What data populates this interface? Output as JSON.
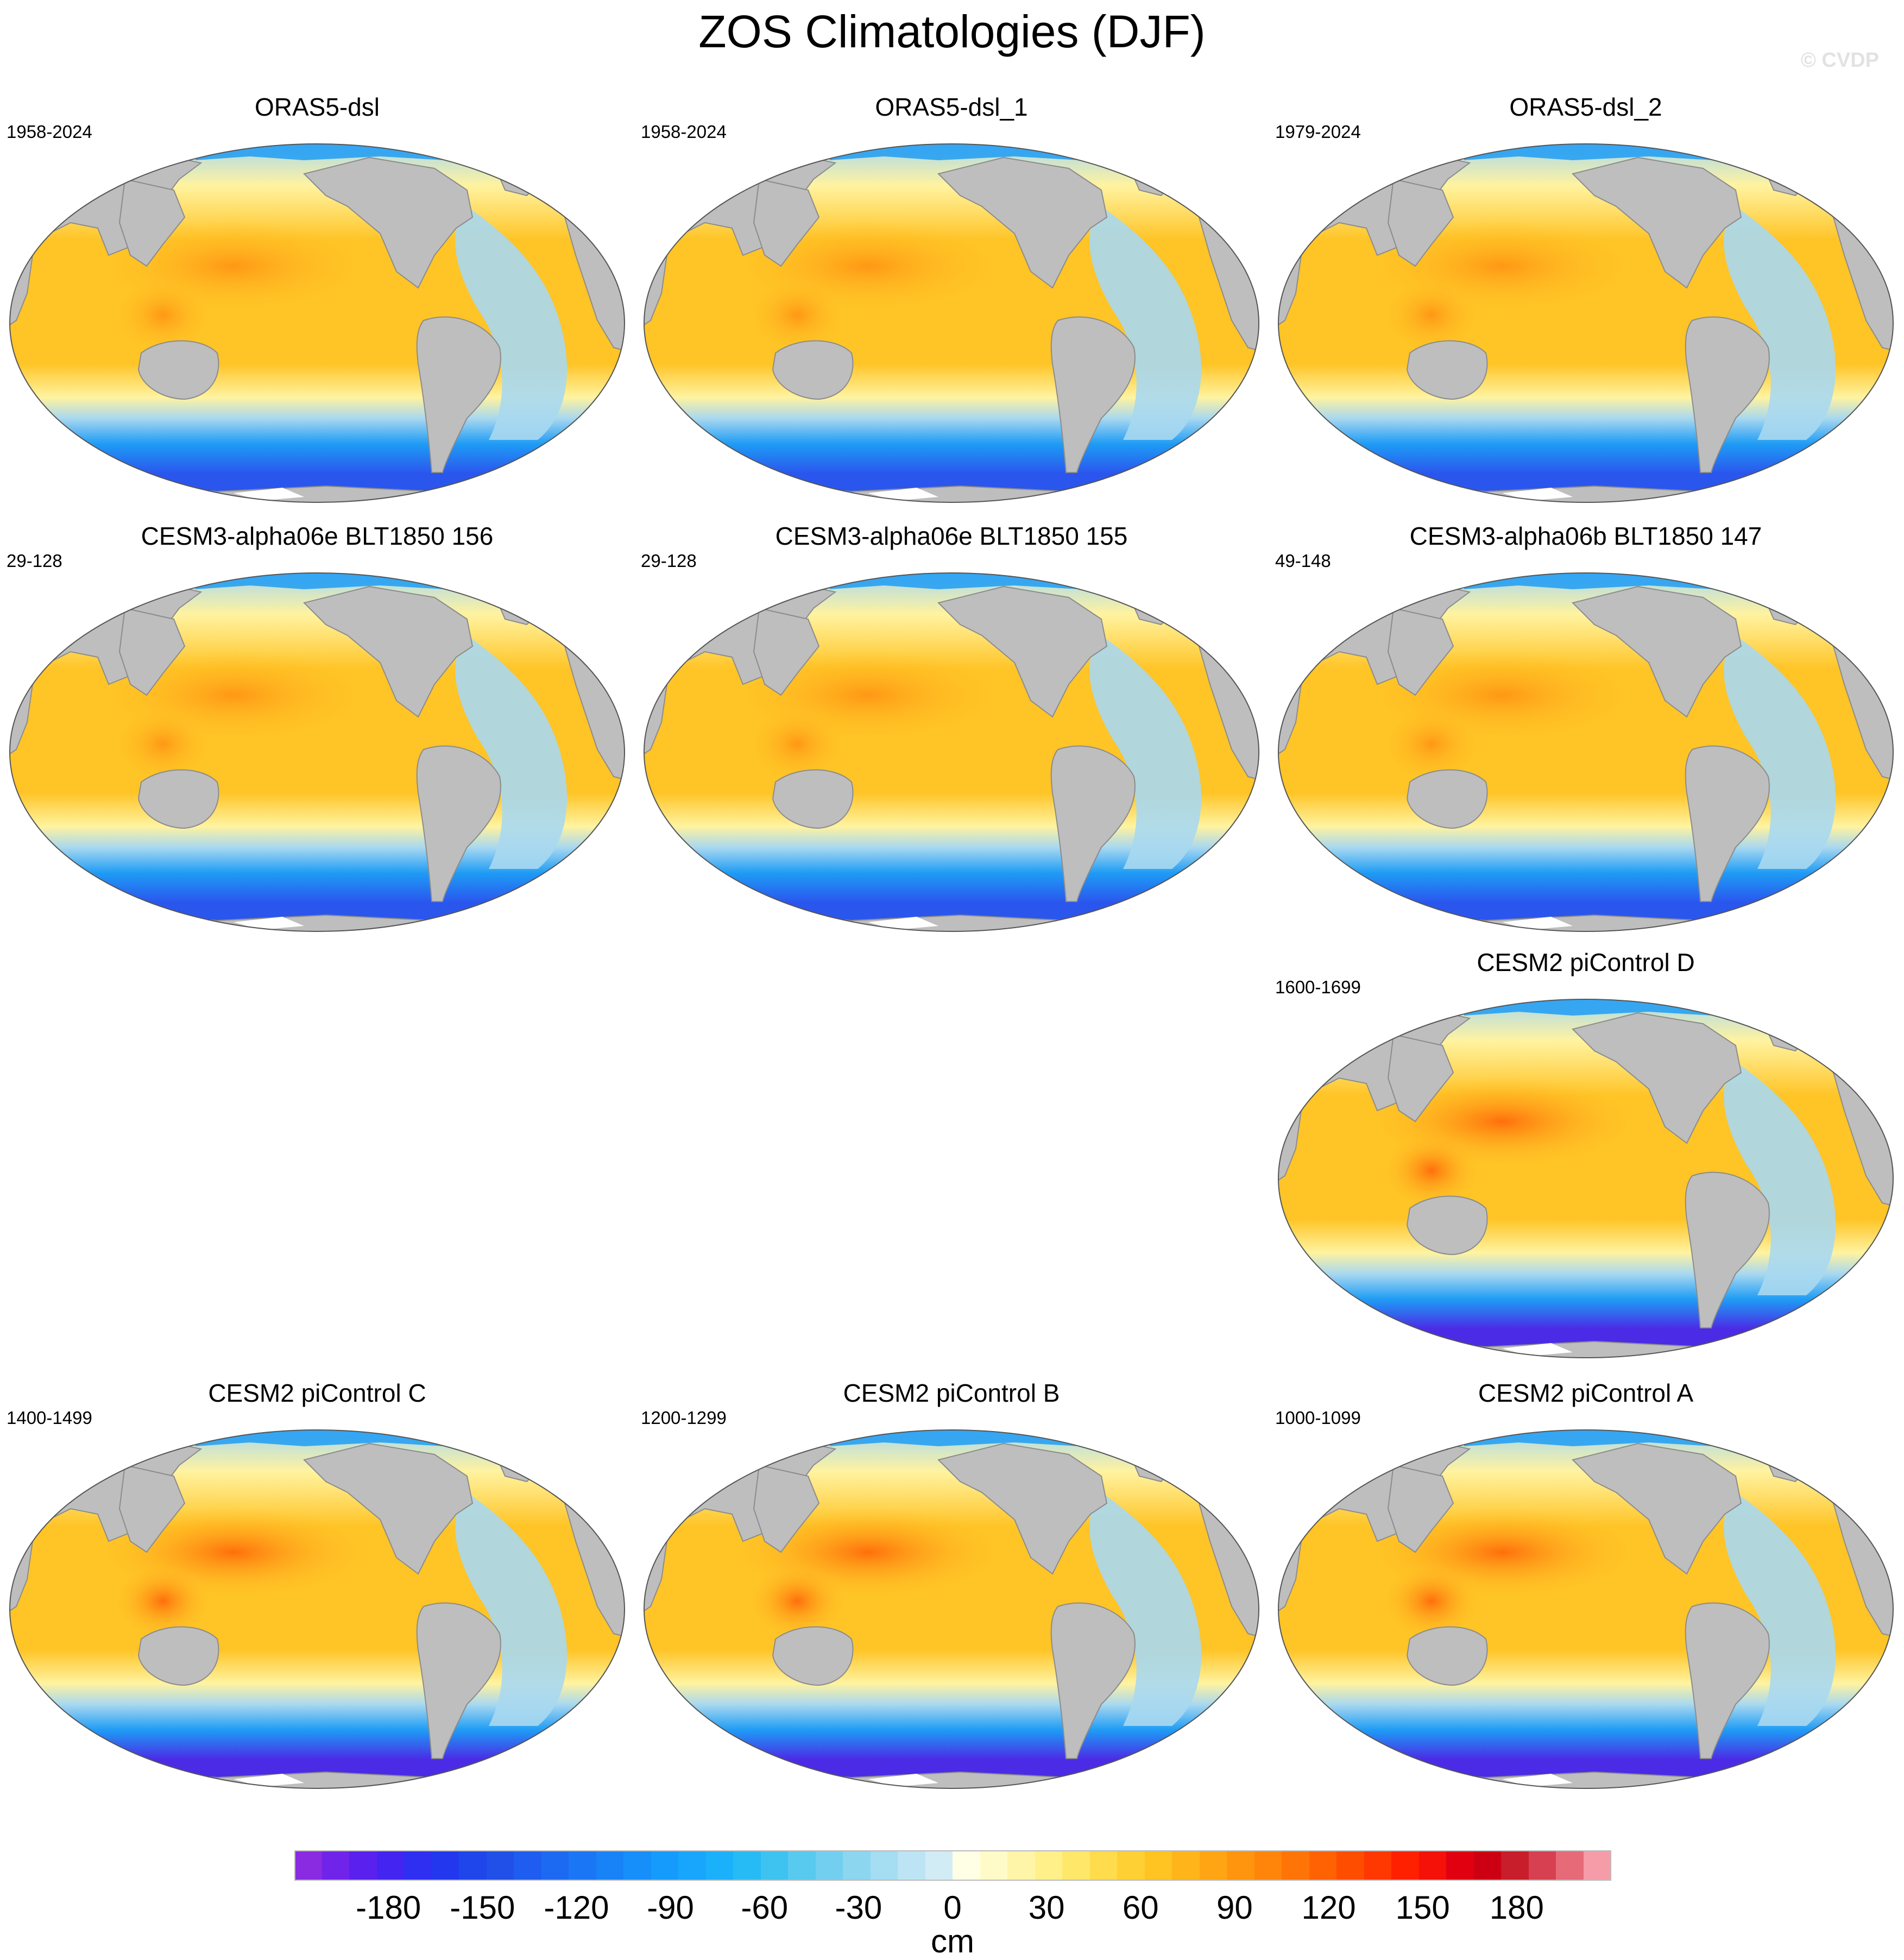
{
  "title": "ZOS Climatologies (DJF)",
  "watermark": "© CVDP",
  "panels": [
    {
      "title": "ORAS5-dsl",
      "period": "1958-2024",
      "row": 0,
      "col": 0,
      "style": "obs"
    },
    {
      "title": "ORAS5-dsl_1",
      "period": "1958-2024",
      "row": 0,
      "col": 1,
      "style": "obs"
    },
    {
      "title": "ORAS5-dsl_2",
      "period": "1979-2024",
      "row": 0,
      "col": 2,
      "style": "obs"
    },
    {
      "title": "CESM3-alpha06e BLT1850 156",
      "period": "29-128",
      "row": 1,
      "col": 0,
      "style": "cesm3"
    },
    {
      "title": "CESM3-alpha06e BLT1850 155",
      "period": "29-128",
      "row": 1,
      "col": 1,
      "style": "cesm3"
    },
    {
      "title": "CESM3-alpha06b BLT1850 147",
      "period": "49-148",
      "row": 1,
      "col": 2,
      "style": "cesm3"
    },
    {
      "title": "CESM2 piControl D",
      "period": "1600-1699",
      "row": 2,
      "col": 2,
      "style": "cesm2"
    },
    {
      "title": "CESM2 piControl C",
      "period": "1400-1499",
      "row": 3,
      "col": 0,
      "style": "cesm2"
    },
    {
      "title": "CESM2 piControl B",
      "period": "1200-1299",
      "row": 3,
      "col": 1,
      "style": "cesm2"
    },
    {
      "title": "CESM2 piControl A",
      "period": "1000-1099",
      "row": 3,
      "col": 2,
      "style": "cesm2"
    }
  ],
  "colorbar": {
    "units": "cm",
    "ticks": [
      "-180",
      "-150",
      "-120",
      "-90",
      "-60",
      "-30",
      "0",
      "30",
      "60",
      "90",
      "120",
      "150",
      "180"
    ],
    "colors": [
      "#8a2be2",
      "#7024ea",
      "#5a20ee",
      "#4424f0",
      "#2f2ff2",
      "#2338ee",
      "#1f46ea",
      "#2050e8",
      "#1f5df0",
      "#1c6af2",
      "#1a76f5",
      "#1882f7",
      "#168ffa",
      "#159bfb",
      "#17a6fb",
      "#1ab1fa",
      "#27bbf5",
      "#3ec3f1",
      "#58c9ef",
      "#72cfef",
      "#8cd6f0",
      "#a5ddf2",
      "#bde4f4",
      "#d2ecf6",
      "#ffffe6",
      "#fffbc8",
      "#fff5a8",
      "#fff08a",
      "#ffe76a",
      "#ffdc4c",
      "#ffd034",
      "#ffc322",
      "#ffb41a",
      "#ffa514",
      "#ff950f",
      "#ff850a",
      "#ff7406",
      "#ff6203",
      "#ff4d00",
      "#ff3700",
      "#ff2000",
      "#f51008",
      "#e00010",
      "#cc0012",
      "#c81d2a",
      "#d64050",
      "#e66a78",
      "#f59ca8"
    ],
    "vmin": -210,
    "vmax": 210,
    "ocean_palette_hex": {
      "deep_negative": "#4b2be6",
      "negative": "#2a56ee",
      "mid_negative": "#1e9cf5",
      "light_negative": "#a8d8f0",
      "light_positive": "#fff3a0",
      "positive": "#ffc426",
      "high_positive": "#ff9514",
      "peak_positive": "#ff6a0a"
    },
    "land_color": "#bebebe"
  }
}
